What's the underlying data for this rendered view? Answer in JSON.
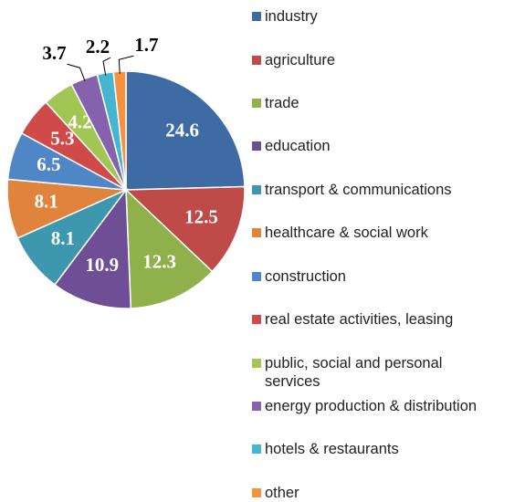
{
  "chart_data": {
    "type": "pie",
    "categories": [
      "industry",
      "agriculture",
      "trade",
      "education",
      "transport & communications",
      "healthcare & social work",
      "construction",
      "real estate activities, leasing",
      "public, social and personal services",
      "energy production & distribution",
      "hotels & restaurants",
      "other"
    ],
    "values": [
      24.6,
      12.5,
      12.3,
      10.9,
      8.1,
      8.1,
      6.5,
      5.3,
      4.2,
      3.7,
      2.2,
      1.7
    ],
    "colors": [
      "#3f6ba5",
      "#be4b48",
      "#8fb04a",
      "#6e4f96",
      "#3d97ae",
      "#e0843d",
      "#4f86c6",
      "#d04a4a",
      "#a2c653",
      "#8562ad",
      "#45b6cf",
      "#f6923d"
    ],
    "legend": "right"
  }
}
